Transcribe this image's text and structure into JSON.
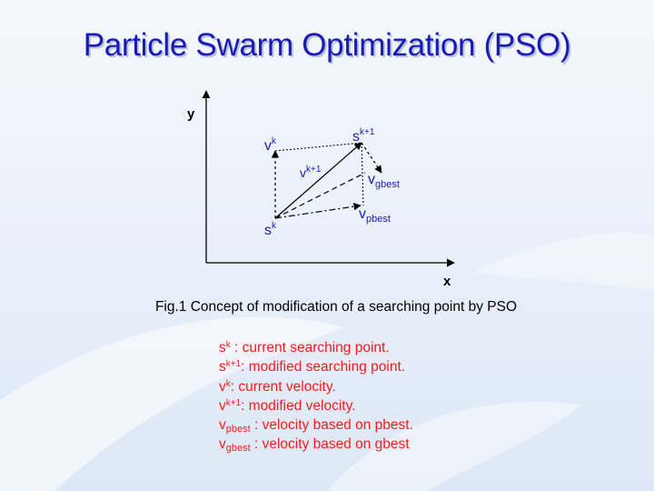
{
  "title": "Particle Swarm Optimization (PSO)",
  "diagram": {
    "axis_y": "y",
    "axis_x": "x",
    "labels": {
      "sk_base": "s",
      "sk_sup": "k",
      "sk1_base": "s",
      "sk1_sup": "k+1",
      "vk_base": "v",
      "vk_sup": "k",
      "vk1_base": "v",
      "vk1_sup": "k+1",
      "vgbest_base": "v",
      "vgbest_sub": "gbest",
      "vpbest_base": "v",
      "vpbest_sub": "pbest"
    }
  },
  "caption": "Fig.1 Concept of modification of a searching point by PSO",
  "legend": [
    {
      "base": "s",
      "sup": "k",
      "sub": "",
      "text": " :  current searching point."
    },
    {
      "base": "s",
      "sup": "k+1",
      "sub": "",
      "text": ": modified searching point."
    },
    {
      "base": "v",
      "sup": "k",
      "sub": "",
      "text": ": current velocity."
    },
    {
      "base": "v",
      "sup": "k+1",
      "sub": "",
      "text": ": modified velocity."
    },
    {
      "base": "v",
      "sup": "",
      "sub": "pbest",
      "text": " : velocity based on pbest."
    },
    {
      "base": "v",
      "sup": "",
      "sub": "gbest",
      "text": " : velocity based on gbest"
    }
  ],
  "colors": {
    "title": "#1a1ab5",
    "diagram_labels": "#1a1ab5",
    "legend_text": "#ff1a1a",
    "caption_text": "#000000"
  }
}
